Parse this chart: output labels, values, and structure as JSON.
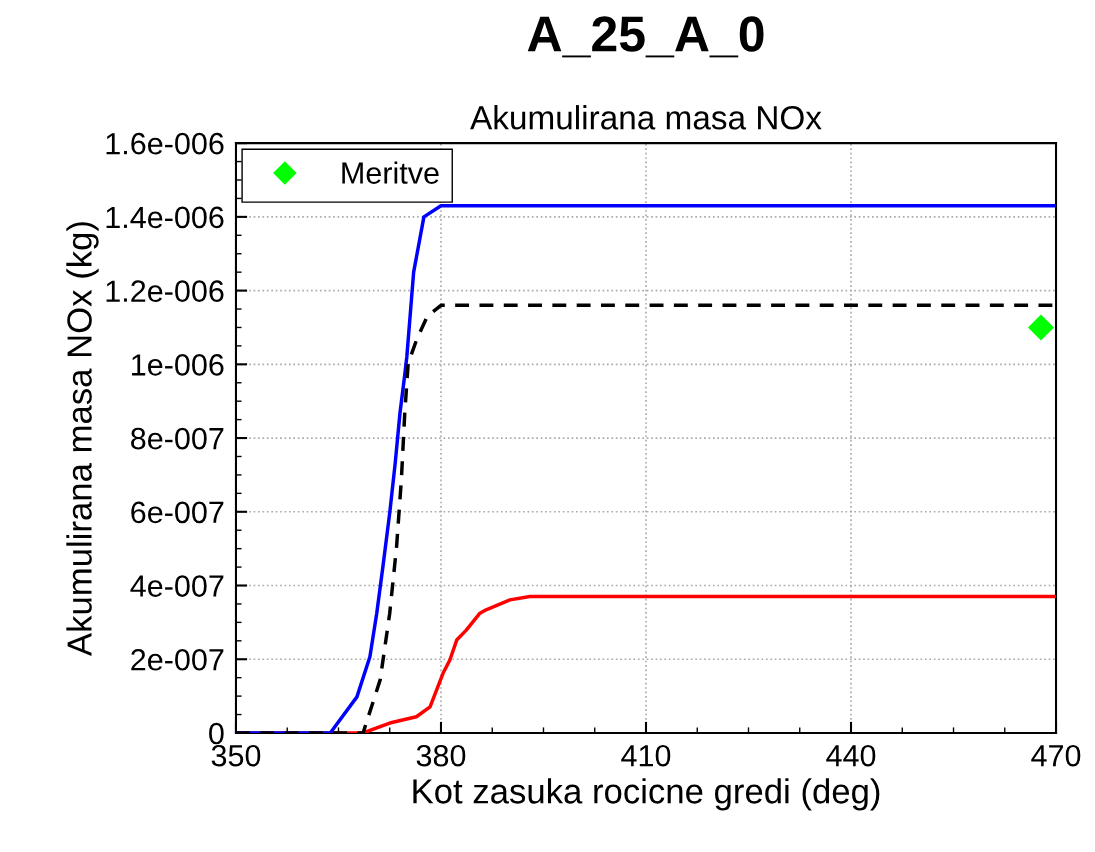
{
  "chart_data": {
    "type": "line",
    "title": "A_25_A_0",
    "subtitle": "Akumulirana masa NOx",
    "xlabel": "Kot zasuka rocicne gredi (deg)",
    "ylabel": "Akumulirana masa NOx (kg)",
    "series": [
      {
        "name": "Meritve",
        "type": "scatter",
        "marker": "diamond",
        "color": "#00ff00",
        "x": [
          467.8
        ],
        "values": [
          1.1e-06
        ]
      },
      {
        "color": "#ff0000",
        "x": [
          350,
          368.6,
          372.5,
          376.4,
          378.4,
          380.3,
          381.3,
          382.3,
          383.7,
          385.7,
          386.6,
          390.1,
          393.0,
          470
        ],
        "values": [
          0,
          0,
          2.7e-08,
          4.4e-08,
          7.1e-08,
          1.62e-07,
          1.98e-07,
          2.52e-07,
          2.79e-07,
          3.25e-07,
          3.34e-07,
          3.61e-07,
          3.7e-07,
          3.7e-07
        ]
      },
      {
        "color": "#0000ff",
        "x": [
          350,
          363.8,
          367.7,
          369.6,
          370.6,
          371.5,
          372.5,
          373.3,
          374.0,
          374.6,
          375.0,
          376.0,
          377.5,
          380,
          470
        ],
        "values": [
          0,
          0,
          9.8e-08,
          2.07e-07,
          3.25e-07,
          4.51e-07,
          5.97e-07,
          7.32e-07,
          8.68e-07,
          9.57e-07,
          1.02e-06,
          1.25e-06,
          1.4e-06,
          1.43e-06,
          1.43e-06
        ]
      },
      {
        "color": "#000000",
        "line_style": "dashed",
        "x": [
          350,
          368.6,
          371.1,
          372.5,
          373.5,
          374.2,
          374.7,
          375.2,
          376.5,
          378,
          380,
          470
        ],
        "values": [
          0,
          0,
          1.44e-07,
          3.25e-07,
          5.05e-07,
          6.86e-07,
          8.68e-07,
          1.003e-06,
          1.07e-06,
          1.13e-06,
          1.16e-06,
          1.16e-06
        ]
      }
    ],
    "xlim": [
      350,
      470
    ],
    "xticks": [
      350,
      380,
      410,
      440,
      470
    ],
    "ylim": [
      0,
      1.6e-06
    ],
    "yticks": [
      {
        "value": 0,
        "label": "0"
      },
      {
        "value": 2e-07,
        "label": "2e-007"
      },
      {
        "value": 4e-07,
        "label": "4e-007"
      },
      {
        "value": 6e-07,
        "label": "6e-007"
      },
      {
        "value": 8e-07,
        "label": "8e-007"
      },
      {
        "value": 1e-06,
        "label": "1e-006"
      },
      {
        "value": 1.2e-06,
        "label": "1.2e-006"
      },
      {
        "value": 1.4e-06,
        "label": "1.4e-006"
      },
      {
        "value": 1.6e-06,
        "label": "1.6e-006"
      }
    ],
    "grid": true,
    "legend": "top left",
    "marker": "none",
    "line_style": "solid"
  }
}
